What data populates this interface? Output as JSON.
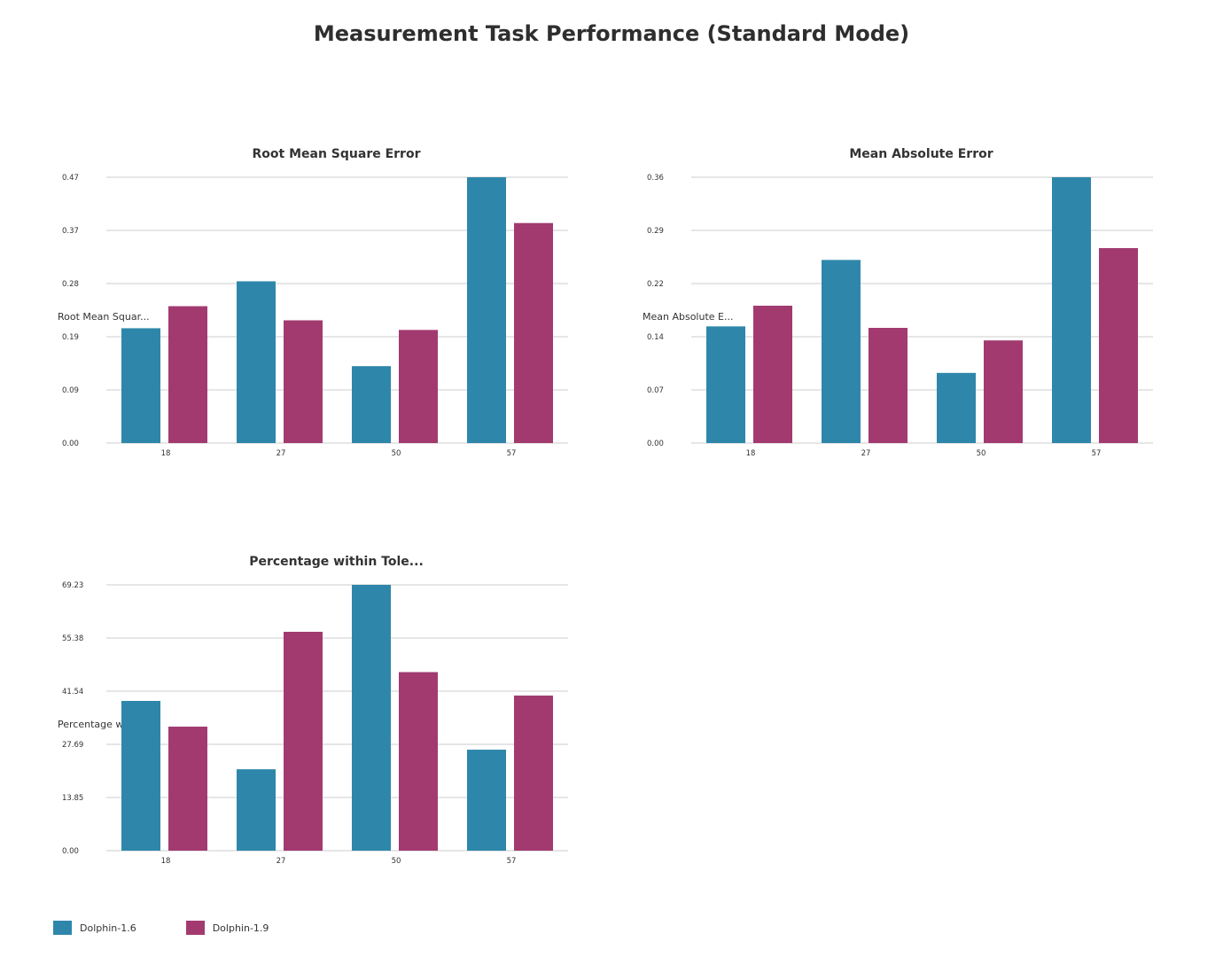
{
  "title": "Measurement Task Performance (Standard Mode)",
  "colors": {
    "Dolphin-1.6": "#2e87aa",
    "Dolphin-1.9": "#a23a70"
  },
  "legend": [
    {
      "name": "Dolphin-1.6",
      "color": "#2e87aa"
    },
    {
      "name": "Dolphin-1.9",
      "color": "#a23a70"
    }
  ],
  "chart_data": [
    {
      "type": "bar",
      "title": "Root Mean Square Error",
      "ylabel": "Root Mean Squar...",
      "xlabel": "",
      "categories": [
        "18",
        "27",
        "50",
        "57"
      ],
      "yticks": [
        "0.00",
        "0.09",
        "0.19",
        "0.28",
        "0.37",
        "0.47"
      ],
      "ylim": [
        0,
        0.47
      ],
      "grid": true,
      "series": [
        {
          "name": "Dolphin-1.6",
          "values": [
            0.203,
            0.286,
            0.136,
            0.47
          ]
        },
        {
          "name": "Dolphin-1.9",
          "values": [
            0.242,
            0.217,
            0.2,
            0.389
          ]
        }
      ]
    },
    {
      "type": "bar",
      "title": "Mean Absolute Error",
      "ylabel": "Mean Absolute E...",
      "xlabel": "",
      "categories": [
        "18",
        "27",
        "50",
        "57"
      ],
      "yticks": [
        "0.00",
        "0.07",
        "0.14",
        "0.22",
        "0.29",
        "0.36"
      ],
      "ylim": [
        0,
        0.36
      ],
      "grid": true,
      "series": [
        {
          "name": "Dolphin-1.6",
          "values": [
            0.158,
            0.248,
            0.095,
            0.36
          ]
        },
        {
          "name": "Dolphin-1.9",
          "values": [
            0.186,
            0.156,
            0.139,
            0.264
          ]
        }
      ]
    },
    {
      "type": "bar",
      "title": "Percentage within Tole...",
      "ylabel": "Percentage with...",
      "xlabel": "",
      "categories": [
        "18",
        "27",
        "50",
        "57"
      ],
      "yticks": [
        "0.00",
        "13.85",
        "27.69",
        "41.54",
        "55.38",
        "69.23"
      ],
      "ylim": [
        0,
        69.23
      ],
      "grid": true,
      "series": [
        {
          "name": "Dolphin-1.6",
          "values": [
            39.0,
            21.2,
            69.23,
            26.3
          ]
        },
        {
          "name": "Dolphin-1.9",
          "values": [
            32.3,
            57.0,
            46.5,
            40.4
          ]
        }
      ]
    }
  ]
}
